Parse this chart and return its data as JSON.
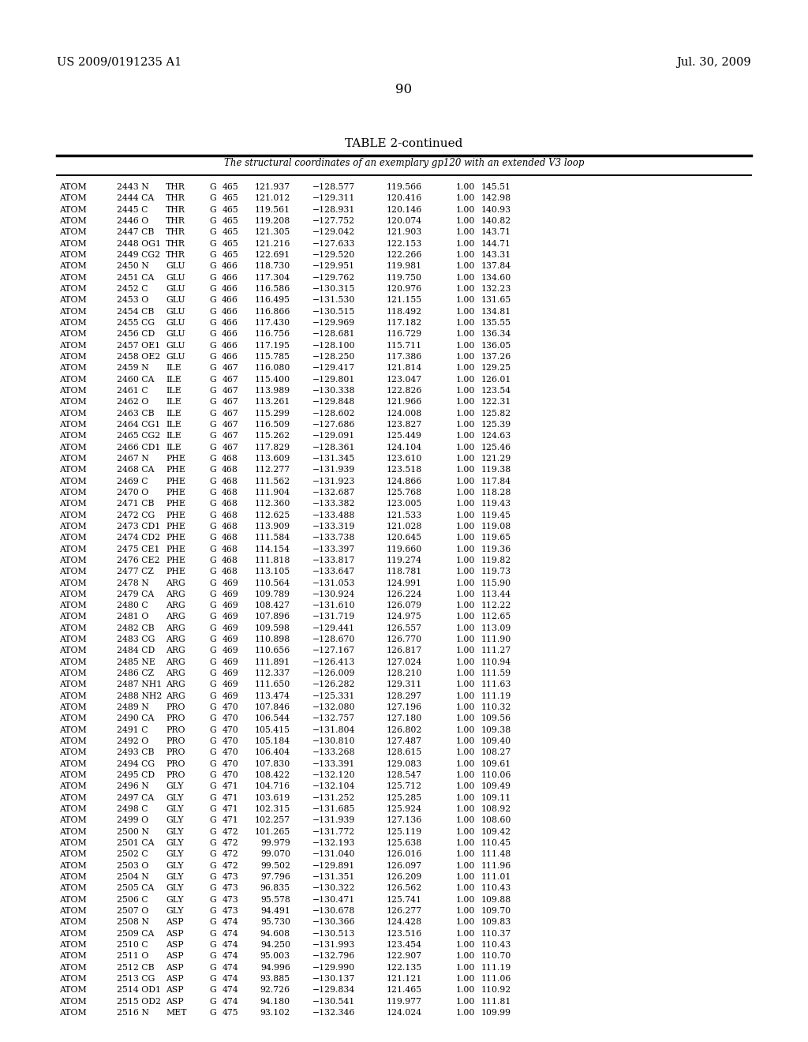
{
  "header_left": "US 2009/0191235 A1",
  "header_right": "Jul. 30, 2009",
  "page_number": "90",
  "table_title": "TABLE 2-continued",
  "table_subtitle": "The structural coordinates of an exemplary gp120 with an extended V3 loop",
  "rows": [
    [
      "ATOM",
      "2443 N",
      "THR",
      "G",
      "465",
      "121.937",
      "−128.577",
      "119.566",
      "1.00",
      "145.51"
    ],
    [
      "ATOM",
      "2444 CA",
      "THR",
      "G",
      "465",
      "121.012",
      "−129.311",
      "120.416",
      "1.00",
      "142.98"
    ],
    [
      "ATOM",
      "2445 C",
      "THR",
      "G",
      "465",
      "119.561",
      "−128.931",
      "120.146",
      "1.00",
      "140.93"
    ],
    [
      "ATOM",
      "2446 O",
      "THR",
      "G",
      "465",
      "119.208",
      "−127.752",
      "120.074",
      "1.00",
      "140.82"
    ],
    [
      "ATOM",
      "2447 CB",
      "THR",
      "G",
      "465",
      "121.305",
      "−129.042",
      "121.903",
      "1.00",
      "143.71"
    ],
    [
      "ATOM",
      "2448 OG1",
      "THR",
      "G",
      "465",
      "121.216",
      "−127.633",
      "122.153",
      "1.00",
      "144.71"
    ],
    [
      "ATOM",
      "2449 CG2",
      "THR",
      "G",
      "465",
      "122.691",
      "−129.520",
      "122.266",
      "1.00",
      "143.31"
    ],
    [
      "ATOM",
      "2450 N",
      "GLU",
      "G",
      "466",
      "118.730",
      "−129.951",
      "119.981",
      "1.00",
      "137.84"
    ],
    [
      "ATOM",
      "2451 CA",
      "GLU",
      "G",
      "466",
      "117.304",
      "−129.762",
      "119.750",
      "1.00",
      "134.60"
    ],
    [
      "ATOM",
      "2452 C",
      "GLU",
      "G",
      "466",
      "116.586",
      "−130.315",
      "120.976",
      "1.00",
      "132.23"
    ],
    [
      "ATOM",
      "2453 O",
      "GLU",
      "G",
      "466",
      "116.495",
      "−131.530",
      "121.155",
      "1.00",
      "131.65"
    ],
    [
      "ATOM",
      "2454 CB",
      "GLU",
      "G",
      "466",
      "116.866",
      "−130.515",
      "118.492",
      "1.00",
      "134.81"
    ],
    [
      "ATOM",
      "2455 CG",
      "GLU",
      "G",
      "466",
      "117.430",
      "−129.969",
      "117.182",
      "1.00",
      "135.55"
    ],
    [
      "ATOM",
      "2456 CD",
      "GLU",
      "G",
      "466",
      "116.756",
      "−128.681",
      "116.729",
      "1.00",
      "136.34"
    ],
    [
      "ATOM",
      "2457 OE1",
      "GLU",
      "G",
      "466",
      "117.195",
      "−128.100",
      "115.711",
      "1.00",
      "136.05"
    ],
    [
      "ATOM",
      "2458 OE2",
      "GLU",
      "G",
      "466",
      "115.785",
      "−128.250",
      "117.386",
      "1.00",
      "137.26"
    ],
    [
      "ATOM",
      "2459 N",
      "ILE",
      "G",
      "467",
      "116.080",
      "−129.417",
      "121.814",
      "1.00",
      "129.25"
    ],
    [
      "ATOM",
      "2460 CA",
      "ILE",
      "G",
      "467",
      "115.400",
      "−129.801",
      "123.047",
      "1.00",
      "126.01"
    ],
    [
      "ATOM",
      "2461 C",
      "ILE",
      "G",
      "467",
      "113.989",
      "−130.338",
      "122.826",
      "1.00",
      "123.54"
    ],
    [
      "ATOM",
      "2462 O",
      "ILE",
      "G",
      "467",
      "113.261",
      "−129.848",
      "121.966",
      "1.00",
      "122.31"
    ],
    [
      "ATOM",
      "2463 CB",
      "ILE",
      "G",
      "467",
      "115.299",
      "−128.602",
      "124.008",
      "1.00",
      "125.82"
    ],
    [
      "ATOM",
      "2464 CG1",
      "ILE",
      "G",
      "467",
      "116.509",
      "−127.686",
      "123.827",
      "1.00",
      "125.39"
    ],
    [
      "ATOM",
      "2465 CG2",
      "ILE",
      "G",
      "467",
      "115.262",
      "−129.091",
      "125.449",
      "1.00",
      "124.63"
    ],
    [
      "ATOM",
      "2466 CD1",
      "ILE",
      "G",
      "467",
      "117.829",
      "−128.361",
      "124.104",
      "1.00",
      "125.46"
    ],
    [
      "ATOM",
      "2467 N",
      "PHE",
      "G",
      "468",
      "113.609",
      "−131.345",
      "123.610",
      "1.00",
      "121.29"
    ],
    [
      "ATOM",
      "2468 CA",
      "PHE",
      "G",
      "468",
      "112.277",
      "−131.939",
      "123.518",
      "1.00",
      "119.38"
    ],
    [
      "ATOM",
      "2469 C",
      "PHE",
      "G",
      "468",
      "111.562",
      "−131.923",
      "124.866",
      "1.00",
      "117.84"
    ],
    [
      "ATOM",
      "2470 O",
      "PHE",
      "G",
      "468",
      "111.904",
      "−132.687",
      "125.768",
      "1.00",
      "118.28"
    ],
    [
      "ATOM",
      "2471 CB",
      "PHE",
      "G",
      "468",
      "112.360",
      "−133.382",
      "123.005",
      "1.00",
      "119.43"
    ],
    [
      "ATOM",
      "2472 CG",
      "PHE",
      "G",
      "468",
      "112.625",
      "−133.488",
      "121.533",
      "1.00",
      "119.45"
    ],
    [
      "ATOM",
      "2473 CD1",
      "PHE",
      "G",
      "468",
      "113.909",
      "−133.319",
      "121.028",
      "1.00",
      "119.08"
    ],
    [
      "ATOM",
      "2474 CD2",
      "PHE",
      "G",
      "468",
      "111.584",
      "−133.738",
      "120.645",
      "1.00",
      "119.65"
    ],
    [
      "ATOM",
      "2475 CE1",
      "PHE",
      "G",
      "468",
      "114.154",
      "−133.397",
      "119.660",
      "1.00",
      "119.36"
    ],
    [
      "ATOM",
      "2476 CE2",
      "PHE",
      "G",
      "468",
      "111.818",
      "−133.817",
      "119.274",
      "1.00",
      "119.82"
    ],
    [
      "ATOM",
      "2477 CZ",
      "PHE",
      "G",
      "468",
      "113.105",
      "−133.647",
      "118.781",
      "1.00",
      "119.73"
    ],
    [
      "ATOM",
      "2478 N",
      "ARG",
      "G",
      "469",
      "110.564",
      "−131.053",
      "124.991",
      "1.00",
      "115.90"
    ],
    [
      "ATOM",
      "2479 CA",
      "ARG",
      "G",
      "469",
      "109.789",
      "−130.924",
      "126.224",
      "1.00",
      "113.44"
    ],
    [
      "ATOM",
      "2480 C",
      "ARG",
      "G",
      "469",
      "108.427",
      "−131.610",
      "126.079",
      "1.00",
      "112.22"
    ],
    [
      "ATOM",
      "2481 O",
      "ARG",
      "G",
      "469",
      "107.896",
      "−131.719",
      "124.975",
      "1.00",
      "112.65"
    ],
    [
      "ATOM",
      "2482 CB",
      "ARG",
      "G",
      "469",
      "109.598",
      "−129.441",
      "126.557",
      "1.00",
      "113.09"
    ],
    [
      "ATOM",
      "2483 CG",
      "ARG",
      "G",
      "469",
      "110.898",
      "−128.670",
      "126.770",
      "1.00",
      "111.90"
    ],
    [
      "ATOM",
      "2484 CD",
      "ARG",
      "G",
      "469",
      "110.656",
      "−127.167",
      "126.817",
      "1.00",
      "111.27"
    ],
    [
      "ATOM",
      "2485 NE",
      "ARG",
      "G",
      "469",
      "111.891",
      "−126.413",
      "127.024",
      "1.00",
      "110.94"
    ],
    [
      "ATOM",
      "2486 CZ",
      "ARG",
      "G",
      "469",
      "112.337",
      "−126.009",
      "128.210",
      "1.00",
      "111.59"
    ],
    [
      "ATOM",
      "2487 NH1",
      "ARG",
      "G",
      "469",
      "111.650",
      "−126.282",
      "129.311",
      "1.00",
      "111.63"
    ],
    [
      "ATOM",
      "2488 NH2",
      "ARG",
      "G",
      "469",
      "113.474",
      "−125.331",
      "128.297",
      "1.00",
      "111.19"
    ],
    [
      "ATOM",
      "2489 N",
      "PRO",
      "G",
      "470",
      "107.846",
      "−132.080",
      "127.196",
      "1.00",
      "110.32"
    ],
    [
      "ATOM",
      "2490 CA",
      "PRO",
      "G",
      "470",
      "106.544",
      "−132.757",
      "127.180",
      "1.00",
      "109.56"
    ],
    [
      "ATOM",
      "2491 C",
      "PRO",
      "G",
      "470",
      "105.415",
      "−131.804",
      "126.802",
      "1.00",
      "109.38"
    ],
    [
      "ATOM",
      "2492 O",
      "PRO",
      "G",
      "470",
      "105.184",
      "−130.810",
      "127.487",
      "1.00",
      "109.40"
    ],
    [
      "ATOM",
      "2493 CB",
      "PRO",
      "G",
      "470",
      "106.404",
      "−133.268",
      "128.615",
      "1.00",
      "108.27"
    ],
    [
      "ATOM",
      "2494 CG",
      "PRO",
      "G",
      "470",
      "107.830",
      "−133.391",
      "129.083",
      "1.00",
      "109.61"
    ],
    [
      "ATOM",
      "2495 CD",
      "PRO",
      "G",
      "470",
      "108.422",
      "−132.120",
      "128.547",
      "1.00",
      "110.06"
    ],
    [
      "ATOM",
      "2496 N",
      "GLY",
      "G",
      "471",
      "104.716",
      "−132.104",
      "125.712",
      "1.00",
      "109.49"
    ],
    [
      "ATOM",
      "2497 CA",
      "GLY",
      "G",
      "471",
      "103.619",
      "−131.252",
      "125.285",
      "1.00",
      "109.11"
    ],
    [
      "ATOM",
      "2498 C",
      "GLY",
      "G",
      "471",
      "102.315",
      "−131.685",
      "125.924",
      "1.00",
      "108.92"
    ],
    [
      "ATOM",
      "2499 O",
      "GLY",
      "G",
      "471",
      "102.257",
      "−131.939",
      "127.136",
      "1.00",
      "108.60"
    ],
    [
      "ATOM",
      "2500 N",
      "GLY",
      "G",
      "472",
      "101.265",
      "−131.772",
      "125.119",
      "1.00",
      "109.42"
    ],
    [
      "ATOM",
      "2501 CA",
      "GLY",
      "G",
      "472",
      "99.979",
      "−132.193",
      "125.638",
      "1.00",
      "110.45"
    ],
    [
      "ATOM",
      "2502 C",
      "GLY",
      "G",
      "472",
      "99.070",
      "−131.040",
      "126.016",
      "1.00",
      "111.48"
    ],
    [
      "ATOM",
      "2503 O",
      "GLY",
      "G",
      "472",
      "99.502",
      "−129.891",
      "126.097",
      "1.00",
      "111.96"
    ],
    [
      "ATOM",
      "2504 N",
      "GLY",
      "G",
      "473",
      "97.796",
      "−131.351",
      "126.209",
      "1.00",
      "111.01"
    ],
    [
      "ATOM",
      "2505 CA",
      "GLY",
      "G",
      "473",
      "96.835",
      "−130.322",
      "126.562",
      "1.00",
      "110.43"
    ],
    [
      "ATOM",
      "2506 C",
      "GLY",
      "G",
      "473",
      "95.578",
      "−130.471",
      "125.741",
      "1.00",
      "109.88"
    ],
    [
      "ATOM",
      "2507 O",
      "GLY",
      "G",
      "473",
      "94.491",
      "−130.678",
      "126.277",
      "1.00",
      "109.70"
    ],
    [
      "ATOM",
      "2508 N",
      "ASP",
      "G",
      "474",
      "95.730",
      "−130.366",
      "124.428",
      "1.00",
      "109.83"
    ],
    [
      "ATOM",
      "2509 CA",
      "ASP",
      "G",
      "474",
      "94.608",
      "−130.513",
      "123.516",
      "1.00",
      "110.37"
    ],
    [
      "ATOM",
      "2510 C",
      "ASP",
      "G",
      "474",
      "94.250",
      "−131.993",
      "123.454",
      "1.00",
      "110.43"
    ],
    [
      "ATOM",
      "2511 O",
      "ASP",
      "G",
      "474",
      "95.003",
      "−132.796",
      "122.907",
      "1.00",
      "110.70"
    ],
    [
      "ATOM",
      "2512 CB",
      "ASP",
      "G",
      "474",
      "94.996",
      "−129.990",
      "122.135",
      "1.00",
      "111.19"
    ],
    [
      "ATOM",
      "2513 CG",
      "ASP",
      "G",
      "474",
      "93.885",
      "−130.137",
      "121.121",
      "1.00",
      "111.06"
    ],
    [
      "ATOM",
      "2514 OD1",
      "ASP",
      "G",
      "474",
      "92.726",
      "−129.834",
      "121.465",
      "1.00",
      "110.92"
    ],
    [
      "ATOM",
      "2515 OD2",
      "ASP",
      "G",
      "474",
      "94.180",
      "−130.541",
      "119.977",
      "1.00",
      "111.81"
    ],
    [
      "ATOM",
      "2516 N",
      "MET",
      "G",
      "475",
      "93.102",
      "−132.346",
      "124.024",
      "1.00",
      "109.99"
    ]
  ]
}
